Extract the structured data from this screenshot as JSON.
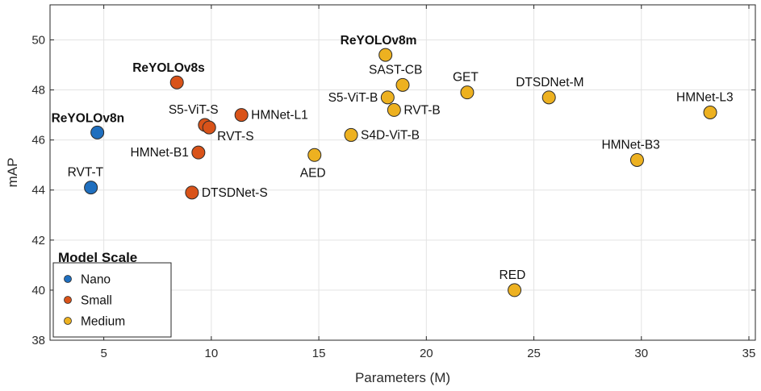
{
  "chart_data": {
    "type": "scatter",
    "xlabel": "Parameters (M)",
    "ylabel": "mAP",
    "xlim": [
      2.5,
      35.3
    ],
    "ylim": [
      38,
      51.4
    ],
    "xticks": [
      5,
      10,
      15,
      20,
      25,
      30,
      35
    ],
    "yticks": [
      38,
      40,
      42,
      44,
      46,
      48,
      50
    ],
    "grid": true,
    "legend": {
      "title": "Model Scale",
      "placement": "bottom-left",
      "entries": [
        {
          "name": "Nano",
          "color": "#1f6fbf"
        },
        {
          "name": "Small",
          "color": "#d95319"
        },
        {
          "name": "Medium",
          "color": "#edb120"
        }
      ]
    },
    "series": [
      {
        "name": "Nano",
        "color": "#1f6fbf",
        "points": [
          {
            "label": "ReYOLOv8n",
            "x": 4.7,
            "y": 46.3,
            "bold": true
          },
          {
            "label": "RVT-T",
            "x": 4.4,
            "y": 44.1,
            "bold": false
          }
        ]
      },
      {
        "name": "Small",
        "color": "#d95319",
        "points": [
          {
            "label": "ReYOLOv8s",
            "x": 8.4,
            "y": 48.3,
            "bold": true
          },
          {
            "label": "S5-ViT-S",
            "x": 9.7,
            "y": 46.6,
            "bold": false
          },
          {
            "label": "RVT-S",
            "x": 9.9,
            "y": 46.5,
            "bold": false
          },
          {
            "label": "HMNet-L1",
            "x": 11.4,
            "y": 47.0,
            "bold": false
          },
          {
            "label": "HMNet-B1",
            "x": 9.4,
            "y": 45.5,
            "bold": false
          },
          {
            "label": "DTSDNet-S",
            "x": 9.1,
            "y": 43.9,
            "bold": false
          }
        ]
      },
      {
        "name": "Medium",
        "color": "#edb120",
        "points": [
          {
            "label": "ReYOLOv8m",
            "x": 18.1,
            "y": 49.4,
            "bold": true
          },
          {
            "label": "SAST-CB",
            "x": 18.9,
            "y": 48.2,
            "bold": false
          },
          {
            "label": "S5-ViT-B",
            "x": 18.2,
            "y": 47.7,
            "bold": false
          },
          {
            "label": "RVT-B",
            "x": 18.5,
            "y": 47.2,
            "bold": false
          },
          {
            "label": "GET",
            "x": 21.9,
            "y": 47.9,
            "bold": false
          },
          {
            "label": "DTSDNet-M",
            "x": 25.7,
            "y": 47.7,
            "bold": false
          },
          {
            "label": "HMNet-L3",
            "x": 33.2,
            "y": 47.1,
            "bold": false
          },
          {
            "label": "S4D-ViT-B",
            "x": 16.5,
            "y": 46.2,
            "bold": false
          },
          {
            "label": "AED",
            "x": 14.8,
            "y": 45.4,
            "bold": false
          },
          {
            "label": "HMNet-B3",
            "x": 29.8,
            "y": 45.2,
            "bold": false
          },
          {
            "label": "RED",
            "x": 24.1,
            "y": 40.0,
            "bold": false
          }
        ]
      }
    ]
  }
}
